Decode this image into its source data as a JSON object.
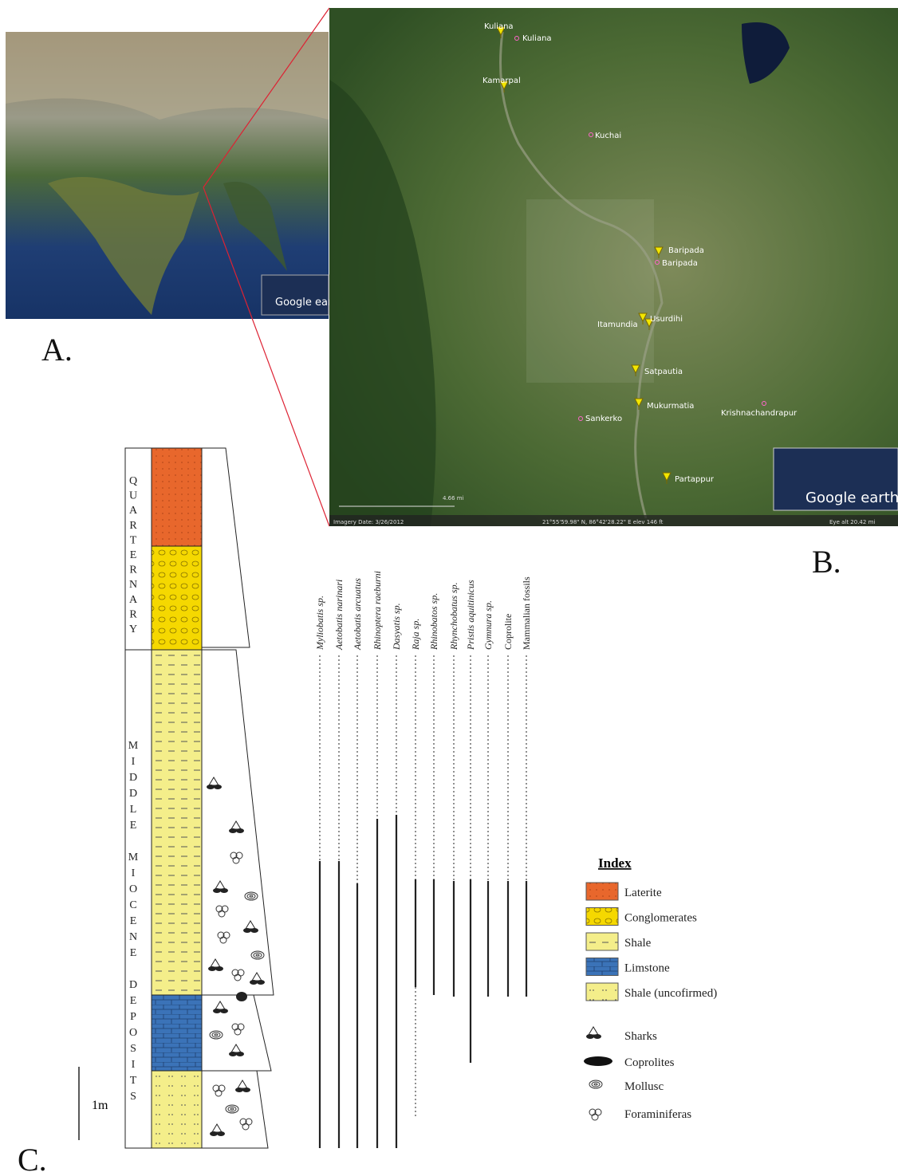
{
  "panels": {
    "a": "A.",
    "b": "B.",
    "c": "C."
  },
  "map_a": {
    "attribution": "Google earth"
  },
  "map_b": {
    "places": [
      "Kuliana",
      "Kuliana",
      "Kamarpal",
      "Kuchai",
      "Baripada",
      "Baripada",
      "Itamundia",
      "Usurdihi",
      "Satpautia",
      "Mukurmatia",
      "Sankerko",
      "Krishnachandrapur",
      "Partappur"
    ],
    "attribution": "Google earth",
    "imagery_date": "Imagery Date: 3/26/2012",
    "coordinates": "21°55'59.98\" N, 86°42'28.22\" E elev 146 ft",
    "eye_alt": "Eye alt 20.42 mi",
    "scale": "4.66 mi"
  },
  "column": {
    "periods": [
      "QUARTERNARY",
      "MIDDLE MIOCENE DEPOSITS"
    ],
    "scale_label": "1m",
    "taxa": [
      "Myliobatis sp.",
      "Aetobatis narinari",
      "Aetobatis arcuatus",
      "Rhinoptera raeburni",
      "Dasyatis sp.",
      "Raja sp.",
      "Rhinobatos sp.",
      "Rhynchobatus sp.",
      "Pristis aquitinicus",
      "Gymnura sp.",
      "Coprolite",
      "Mammalian fossils"
    ]
  },
  "index": {
    "title": "Index",
    "lithology": [
      "Laterite",
      "Conglomerates",
      "Shale",
      "Limstone",
      "Shale (uncofirmed)"
    ],
    "symbols": [
      "Sharks",
      "Coprolites",
      "Mollusc",
      "Foraminiferas"
    ]
  }
}
